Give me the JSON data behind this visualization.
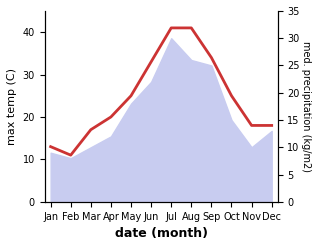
{
  "months": [
    "Jan",
    "Feb",
    "Mar",
    "Apr",
    "May",
    "Jun",
    "Jul",
    "Aug",
    "Sep",
    "Oct",
    "Nov",
    "Dec"
  ],
  "temp": [
    13,
    11,
    17,
    20,
    25,
    33,
    41,
    41,
    34,
    25,
    18,
    18
  ],
  "precip": [
    9,
    8,
    10,
    12,
    18,
    22,
    30,
    26,
    25,
    15,
    10,
    13
  ],
  "temp_color": "#cc3333",
  "precip_fill_color": "#c8ccf0",
  "ylabel_left": "max temp (C)",
  "ylabel_right": "med. precipitation (kg/m2)",
  "xlabel": "date (month)",
  "ylim_left": [
    0,
    45
  ],
  "ylim_right": [
    0,
    35
  ],
  "yticks_left": [
    0,
    10,
    20,
    30,
    40
  ],
  "yticks_right": [
    0,
    5,
    10,
    15,
    20,
    25,
    30,
    35
  ],
  "background_color": "#ffffff"
}
